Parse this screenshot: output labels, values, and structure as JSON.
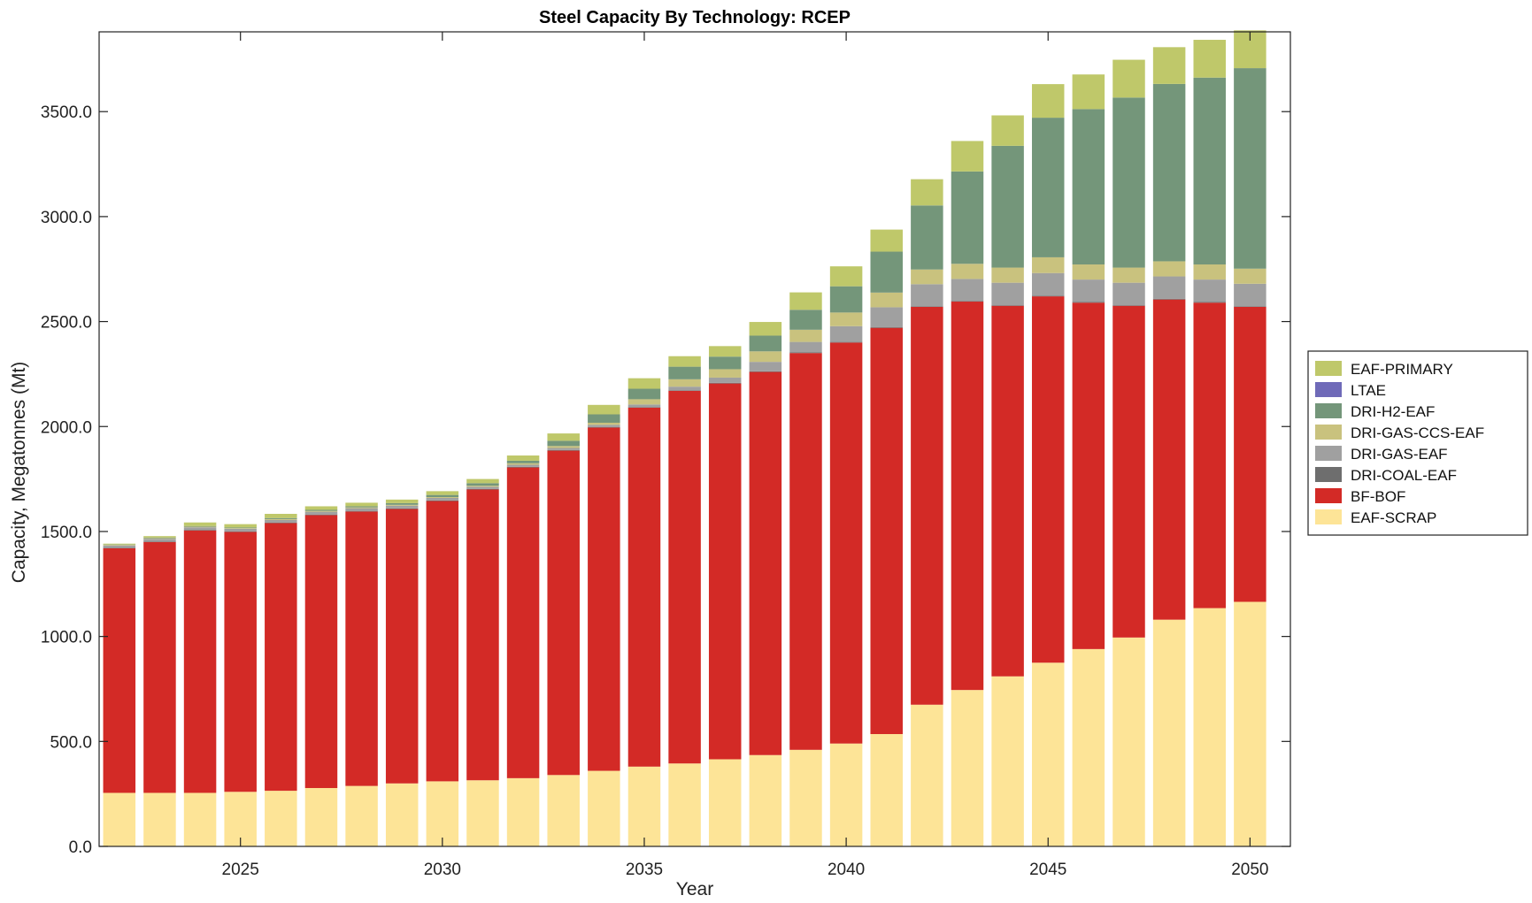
{
  "chart_data": {
    "type": "bar",
    "stacked": true,
    "title": "Steel Capacity By Technology: RCEP",
    "xlabel": "Year",
    "ylabel": "Capacity, Megatonnes (Mt)",
    "ylim": [
      0,
      3880
    ],
    "yticks": [
      0,
      500,
      1000,
      1500,
      2000,
      2500,
      3000,
      3500
    ],
    "ytick_labels": [
      "0.0",
      "500.0",
      "1000.0",
      "1500.0",
      "2000.0",
      "2500.0",
      "3000.0",
      "3500.0"
    ],
    "xlim": [
      2021.5,
      2051
    ],
    "xticks": [
      2025,
      2030,
      2035,
      2040,
      2045,
      2050
    ],
    "xtick_labels": [
      "2025",
      "2030",
      "2035",
      "2040",
      "2045",
      "2050"
    ],
    "grid": false,
    "legend_position": "outside-right",
    "categories": [
      2022,
      2023,
      2024,
      2025,
      2026,
      2027,
      2028,
      2029,
      2030,
      2031,
      2032,
      2033,
      2034,
      2035,
      2036,
      2037,
      2038,
      2039,
      2040,
      2041,
      2042,
      2043,
      2044,
      2045,
      2046,
      2047,
      2048,
      2049,
      2050
    ],
    "series": [
      {
        "name": "EAF-SCRAP",
        "color": "#fde497",
        "values": [
          255,
          255,
          255,
          260,
          265,
          278,
          288,
          300,
          310,
          315,
          325,
          340,
          360,
          380,
          395,
          415,
          435,
          460,
          490,
          535,
          675,
          745,
          810,
          875,
          940,
          995,
          1080,
          1135,
          1165
        ]
      },
      {
        "name": "BF-BOF",
        "color": "#d32a26",
        "values": [
          1165,
          1195,
          1250,
          1238,
          1275,
          1300,
          1307,
          1307,
          1335,
          1385,
          1480,
          1545,
          1635,
          1710,
          1775,
          1790,
          1825,
          1890,
          1910,
          1935,
          1895,
          1850,
          1765,
          1745,
          1650,
          1580,
          1525,
          1455,
          1405
        ]
      },
      {
        "name": "DRI-COAL-EAF",
        "color": "#6e6e6e",
        "values": [
          3,
          3,
          3,
          3,
          3,
          3,
          3,
          3,
          3,
          3,
          3,
          3,
          3,
          3,
          3,
          3,
          3,
          3,
          3,
          3,
          3,
          3,
          3,
          3,
          3,
          3,
          3,
          3,
          3
        ]
      },
      {
        "name": "DRI-GAS-EAF",
        "color": "#a0a0a0",
        "values": [
          10,
          12,
          12,
          12,
          12,
          13,
          13,
          13,
          12,
          10,
          10,
          10,
          10,
          12,
          17,
          25,
          45,
          50,
          75,
          95,
          105,
          105,
          107,
          108,
          107,
          107,
          107,
          107,
          107
        ]
      },
      {
        "name": "DRI-GAS-CCS-EAF",
        "color": "#c9c27e",
        "values": [
          3,
          3,
          3,
          3,
          4,
          4,
          4,
          4,
          4,
          5,
          7,
          9,
          10,
          25,
          35,
          40,
          50,
          58,
          65,
          70,
          70,
          72,
          72,
          75,
          72,
          72,
          72,
          72,
          72
        ]
      },
      {
        "name": "DRI-H2-EAF",
        "color": "#74967a",
        "values": [
          2,
          3,
          3,
          3,
          5,
          5,
          5,
          8,
          10,
          12,
          12,
          25,
          40,
          50,
          60,
          60,
          75,
          95,
          125,
          195,
          305,
          440,
          580,
          665,
          740,
          810,
          845,
          890,
          955
        ]
      },
      {
        "name": "LTAE",
        "color": "#6f6ab8",
        "values": [
          0,
          0,
          0,
          0,
          0,
          0,
          0,
          0,
          0,
          0,
          0,
          0,
          0,
          0,
          0,
          0,
          0,
          0,
          0,
          0,
          0,
          0,
          0,
          0,
          0,
          0,
          0,
          0,
          0
        ]
      },
      {
        "name": "EAF-PRIMARY",
        "color": "#bfc86a",
        "values": [
          4,
          7,
          17,
          16,
          20,
          17,
          17,
          17,
          18,
          20,
          25,
          35,
          45,
          50,
          50,
          50,
          65,
          83,
          95,
          105,
          125,
          145,
          145,
          160,
          165,
          180,
          175,
          180,
          180
        ]
      }
    ],
    "legend_order": [
      "EAF-PRIMARY",
      "LTAE",
      "DRI-H2-EAF",
      "DRI-GAS-CCS-EAF",
      "DRI-GAS-EAF",
      "DRI-COAL-EAF",
      "BF-BOF",
      "EAF-SCRAP"
    ]
  }
}
